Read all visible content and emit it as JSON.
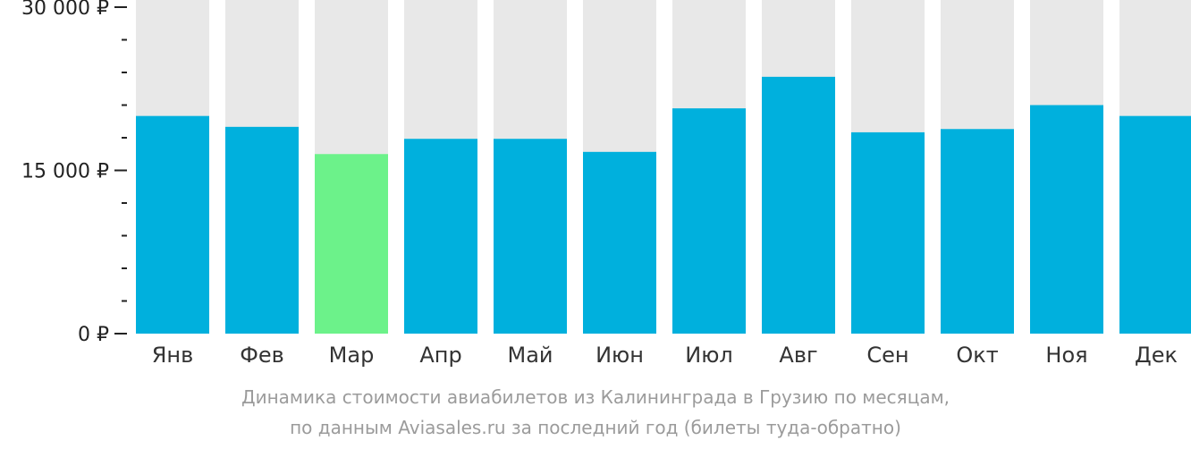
{
  "chart_data": {
    "type": "bar",
    "categories": [
      "Янв",
      "Фев",
      "Мар",
      "Апр",
      "Май",
      "Июн",
      "Июл",
      "Авг",
      "Сен",
      "Окт",
      "Ноя",
      "Дек"
    ],
    "values": [
      20000,
      19000,
      16500,
      17900,
      17900,
      16700,
      20700,
      23600,
      18500,
      18800,
      21000,
      20000
    ],
    "ylim": [
      0,
      30000
    ],
    "y_tick_labels": [
      "30 000 ₽",
      "15 000 ₽",
      "0 ₽"
    ],
    "y_tick_values": [
      30000,
      15000,
      0
    ],
    "minor_ticks_per_interval": 5,
    "highlight_category": "Мар",
    "colors": {
      "bar": "#00b0dd",
      "highlight": "#6cf28a",
      "background_bar": "#e8e8e8",
      "axis": "#222222"
    },
    "grid": false,
    "caption_line_1": "Динамика стоимости авиабилетов из Калининграда в Грузию по месяцам,",
    "caption_line_2": "по данным Aviasales.ru за последний год (билеты туда-обратно)"
  }
}
